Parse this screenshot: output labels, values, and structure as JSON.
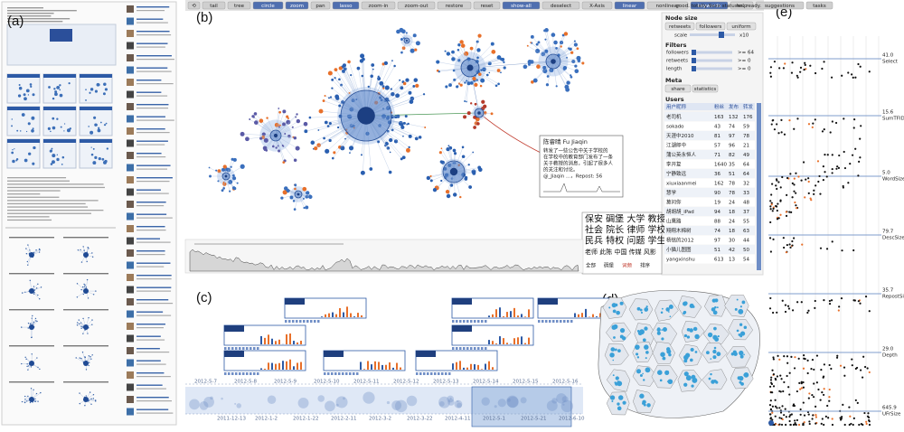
{
  "panel_labels": [
    "(a)",
    "(b)",
    "(c)",
    "(d)",
    "(e)"
  ],
  "toolbar": {
    "buttons": [
      {
        "label": "⟲",
        "active": false
      },
      {
        "label": "tail",
        "active": false
      },
      {
        "label": "tree",
        "active": false
      },
      {
        "label": "circle",
        "active": true
      },
      {
        "label": "zoom",
        "active": true
      },
      {
        "label": "pan",
        "active": false
      },
      {
        "label": "lasso",
        "active": true
      },
      {
        "label": "zoom-in",
        "active": false
      },
      {
        "label": "zoom-out",
        "active": false
      },
      {
        "label": "restore",
        "active": false
      },
      {
        "label": "reset",
        "active": false
      },
      {
        "label": "show-all",
        "active": true
      },
      {
        "label": "deselect",
        "active": false
      },
      {
        "label": "X-Axis",
        "active": false
      },
      {
        "label": "linear",
        "active": true
      },
      {
        "label": "nonlinear",
        "active": false
      },
      {
        "label": "keywords",
        "active": true
      },
      {
        "label": "help",
        "active": false
      },
      {
        "label": "suggestions",
        "active": false
      },
      {
        "label": "tasks",
        "active": false
      }
    ],
    "status": "good. totally 9xxx statuses. ready."
  },
  "controls": {
    "node_size_title": "Node size",
    "node_size_options": [
      "retweets",
      "followers",
      "uniform"
    ],
    "scale_label": "scale",
    "scale_value": "x10",
    "filters_title": "Filters",
    "filters": [
      {
        "name": "followers",
        "value": ">= 64"
      },
      {
        "name": "retweets",
        "value": ">= 0"
      },
      {
        "name": "length",
        "value": ">= 0"
      }
    ],
    "meta_title": "Meta",
    "meta_buttons": [
      "share",
      "statistics"
    ],
    "users_title": "Users",
    "users_columns": [
      "用户昵称",
      "粉丝",
      "发布",
      "转发"
    ],
    "users_rows": [
      [
        "老司机",
        "163",
        "132",
        "176"
      ],
      [
        "sokado",
        "43",
        "74",
        "59"
      ],
      [
        "天涯中2010",
        "81",
        "97",
        "78"
      ],
      [
        "江湖郎中",
        "57",
        "96",
        "21"
      ],
      [
        "蒲公英永恒人",
        "71",
        "82",
        "49"
      ],
      [
        "李开复",
        "1640",
        "35",
        "64"
      ],
      [
        "宁静致远",
        "36",
        "51",
        "64"
      ],
      [
        "xiuxiaanmei",
        "162",
        "78",
        "32"
      ],
      [
        "慧学",
        "90",
        "78",
        "33"
      ],
      [
        "莫问你",
        "19",
        "24",
        "48"
      ],
      [
        "胡胡胡_iPad",
        "94",
        "18",
        "37"
      ],
      [
        "山鹰路",
        "88",
        "24",
        "55"
      ],
      [
        "翔翔木棉树",
        "74",
        "18",
        "63"
      ],
      [
        "杨铭的2012",
        "97",
        "30",
        "44"
      ],
      [
        "小猫儿图图",
        "51",
        "42",
        "50"
      ],
      [
        "yangxinshu",
        "613",
        "13",
        "54"
      ]
    ]
  },
  "tooltip": {
    "header": "陈睿晴 Fu Jiaqin",
    "body": [
      "转发了一些公告中关于学校的",
      "在学校中的教育部门发布了一条",
      "关于教授的消息，引起了很多人",
      "的关注和讨论。",
      "@_Jiaqin ...，Repost: 56"
    ]
  },
  "keywords": {
    "lines": [
      "保安 碉堡 大学 教授",
      "社会 院长 律师 学校",
      "民兵 特权 问题 学生",
      "老师 此陈 中国 传媒 风影"
    ],
    "controls": [
      "全部",
      "碉堡",
      "词频",
      "排序"
    ]
  },
  "timeline": {
    "top_dates": [
      "2012-5-7",
      "2012-5-8",
      "2012-5-9",
      "2012-5-10",
      "2012-5-11",
      "2012-5-12",
      "2012-5-13",
      "2012-5-14",
      "2012-5-15",
      "2012-5-16"
    ],
    "bottom_dates": [
      "2011-12-13",
      "2012-1-2",
      "2012-1-22",
      "2012-2-11",
      "2012-3-2",
      "2012-3-22",
      "2012-4-11",
      "2012-5-1",
      "2012-5-21",
      "2012-6-10"
    ]
  },
  "axes": [
    {
      "value": "41.0",
      "name": "Select"
    },
    {
      "value": "15.6",
      "name": "SumTFIDF"
    },
    {
      "value": "5.0",
      "name": "WordSize"
    },
    {
      "value": "79.7",
      "name": "DescSize"
    },
    {
      "value": "35.7",
      "name": "RepostSize"
    },
    {
      "value": "29.0",
      "name": "Depth"
    },
    {
      "value": "645.9",
      "name": "UFrSize"
    }
  ]
}
